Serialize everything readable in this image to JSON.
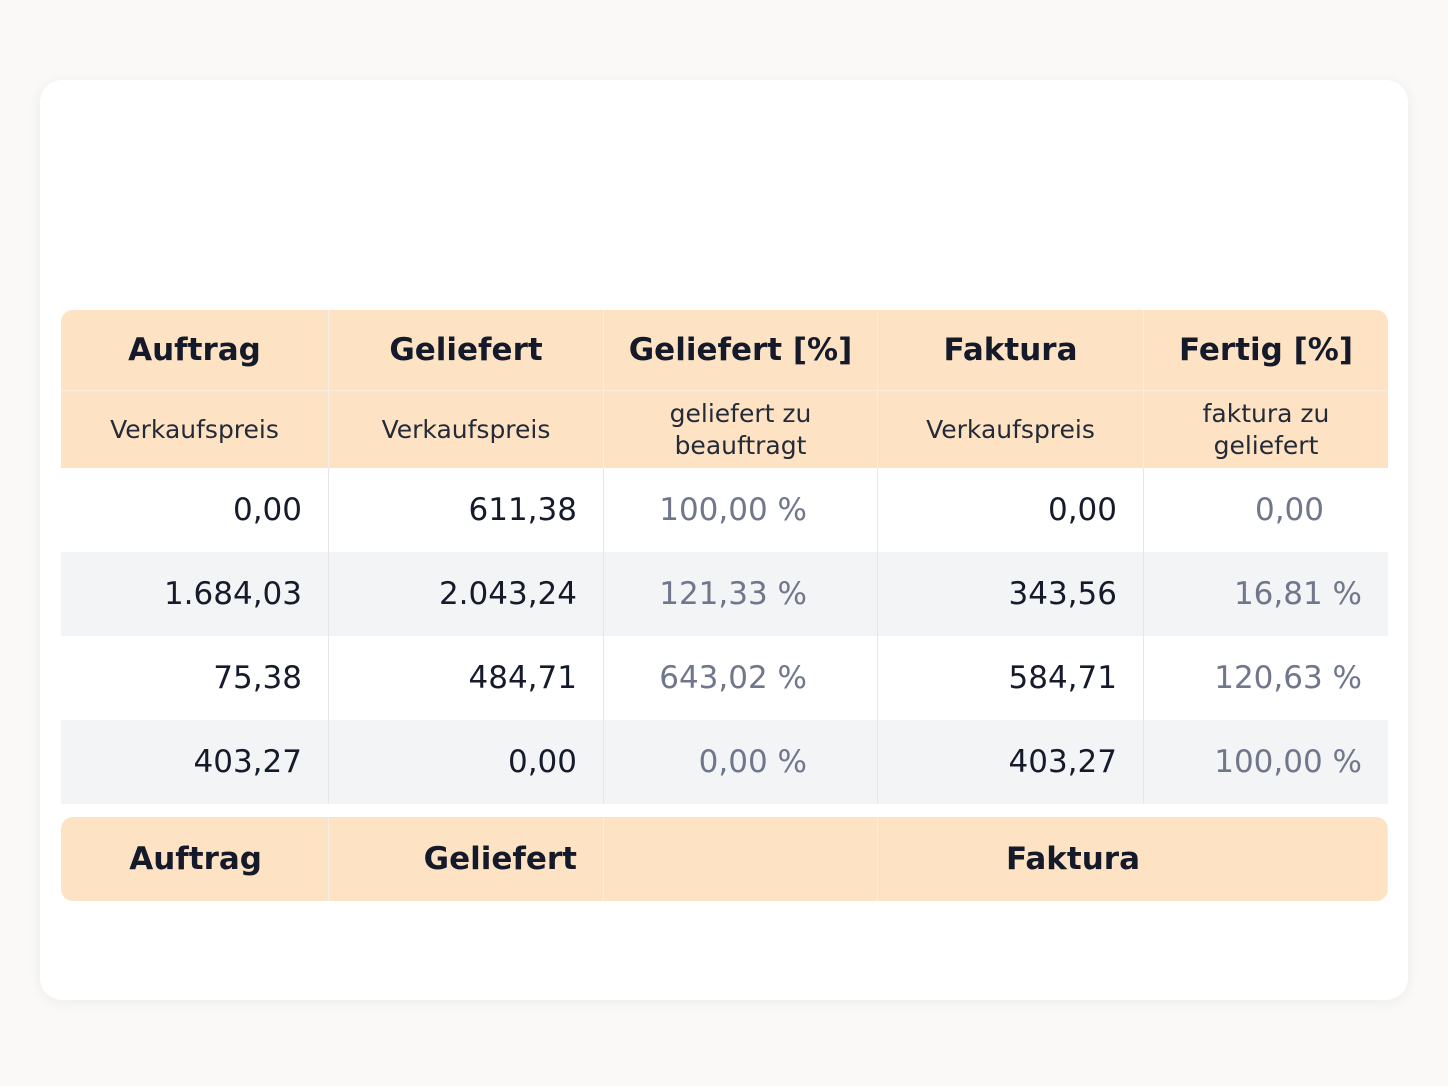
{
  "table": {
    "headers": [
      "Auftrag",
      "Geliefert",
      "Geliefert [%]",
      "Faktura",
      "Fertig [%]"
    ],
    "subheaders": [
      [
        "Verkaufspreis"
      ],
      [
        "Verkaufspreis"
      ],
      [
        "geliefert zu",
        "beauftragt"
      ],
      [
        "Verkaufspreis"
      ],
      [
        "faktura zu",
        "geliefert"
      ]
    ],
    "rows": [
      [
        "0,00",
        "611,38",
        "100,00 %",
        "0,00",
        "0,00"
      ],
      [
        "1.684,03",
        "2.043,24",
        "121,33 %",
        "343,56",
        "16,81 %"
      ],
      [
        "75,38",
        "484,71",
        "643,02 %",
        "584,71",
        "120,63 %"
      ],
      [
        "403,27",
        "0,00",
        "0,00 %",
        "403,27",
        "100,00 %"
      ]
    ]
  },
  "footer": {
    "auftrag": "Auftrag",
    "geliefert": "Geliefert",
    "faktura": "Faktura"
  },
  "colors": {
    "header_bg": "#fde3c4",
    "row_alt_bg": "#f3f4f6",
    "muted_text": "#70768b"
  }
}
